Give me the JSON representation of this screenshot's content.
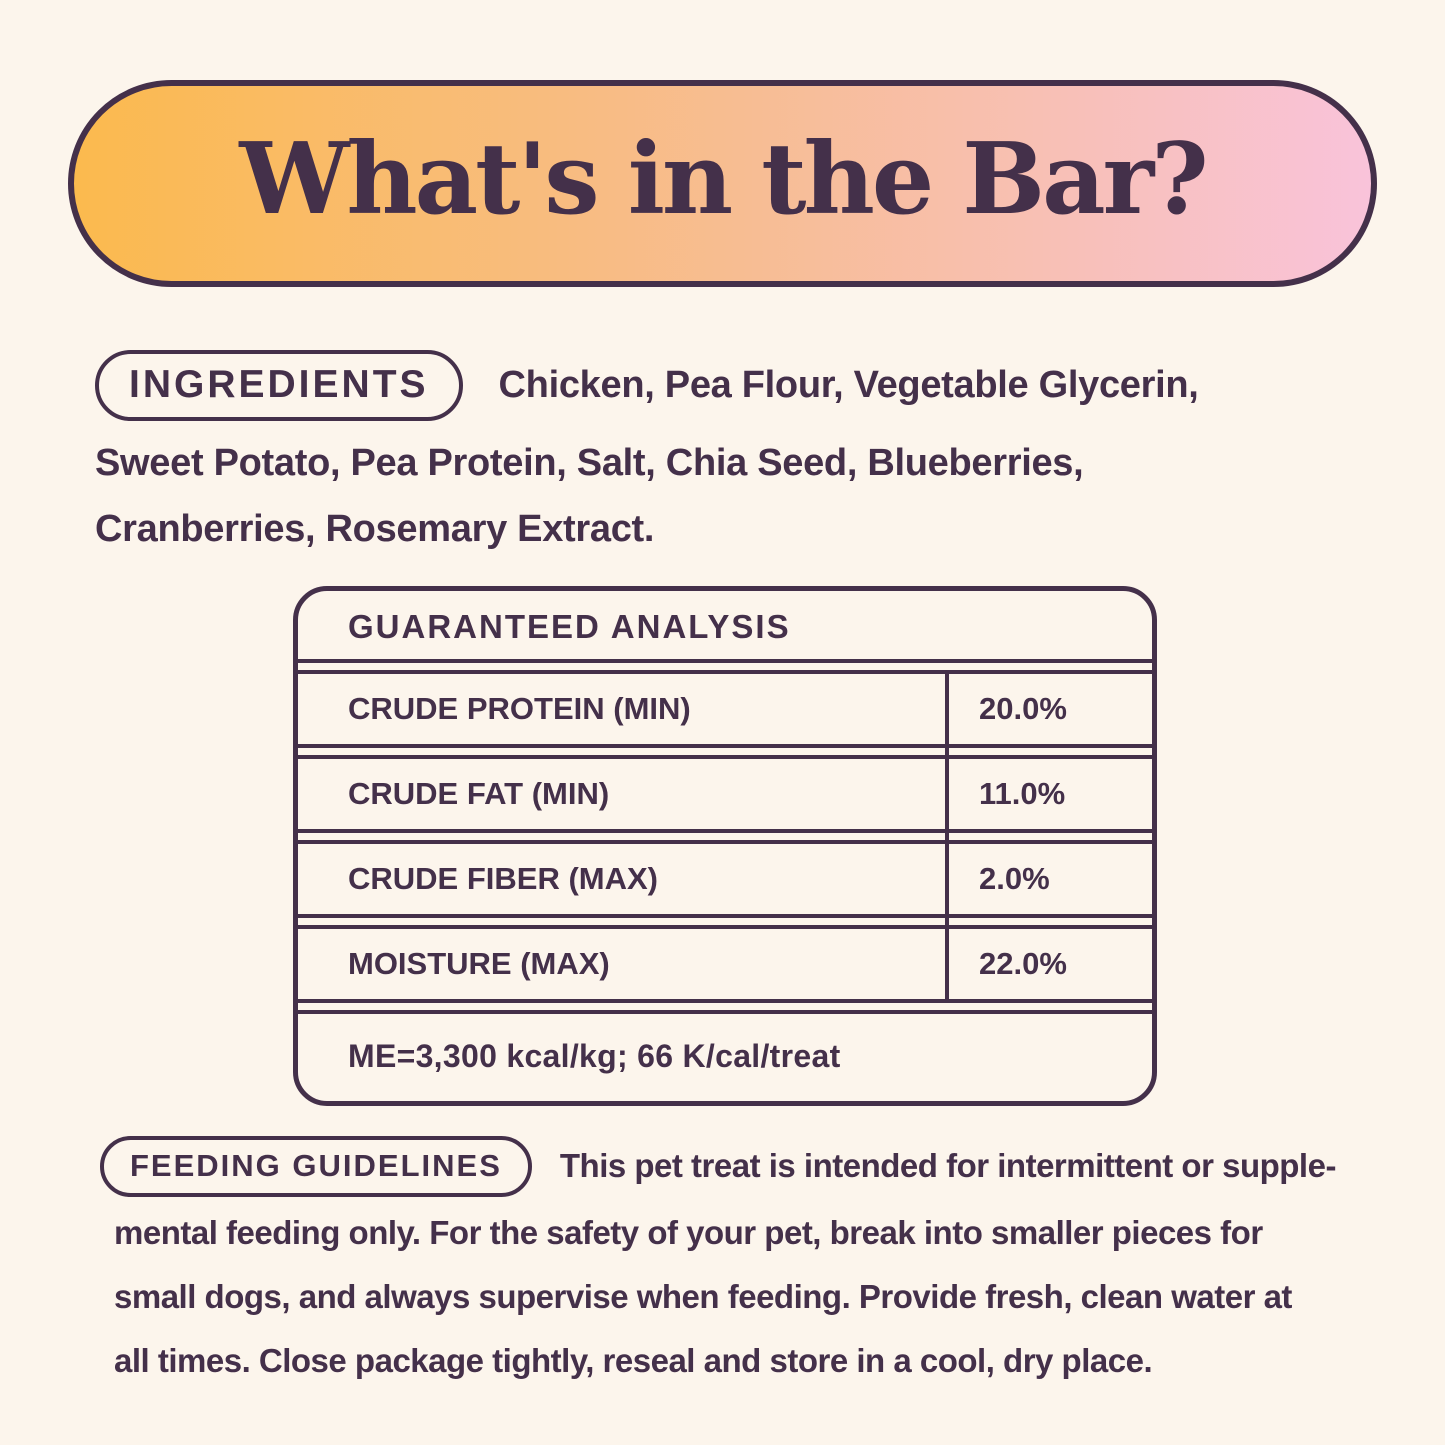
{
  "page": {
    "background_color": "#FCF5EC",
    "accent_color": "#44304A"
  },
  "banner": {
    "title": "What's in the Bar?",
    "gradient_from": "#FBBA4E",
    "gradient_to": "#F9C3DA"
  },
  "ingredients": {
    "label": "INGREDIENTS",
    "line1": "Chicken, Pea Flour, Vegetable Glycerin,",
    "line2": "Sweet Potato, Pea Protein, Salt, Chia Seed, Blueberries,",
    "line3": "Cranberries, Rosemary Extract."
  },
  "analysis": {
    "title": "GUARANTEED ANALYSIS",
    "rows": [
      {
        "label": "CRUDE PROTEIN (MIN)",
        "value": "20.0%"
      },
      {
        "label": "CRUDE FAT (MIN)",
        "value": "11.0%"
      },
      {
        "label": "CRUDE FIBER (MAX)",
        "value": "2.0%"
      },
      {
        "label": "MOISTURE (MAX)",
        "value": "22.0%"
      }
    ],
    "footnote": "ME=3,300 kcal/kg; 66 K/cal/treat"
  },
  "feeding": {
    "label": "FEEDING GUIDELINES",
    "line1": "This pet treat is intended for intermittent or supple-",
    "line2": "mental feeding only. For the safety of your pet, break into smaller pieces for",
    "line3": "small dogs, and always supervise when feeding. Provide fresh, clean water at",
    "line4": "all times. Close package tightly, reseal and store in a cool, dry place."
  }
}
